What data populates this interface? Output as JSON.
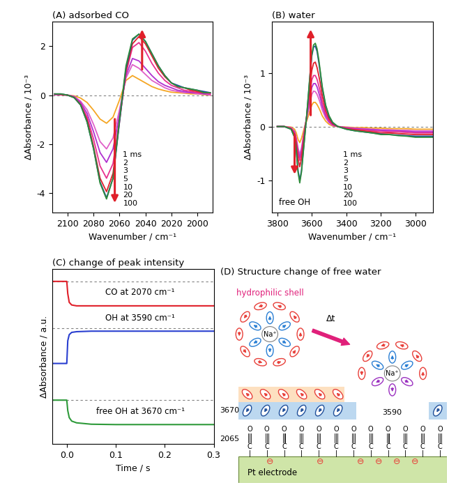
{
  "chart_data": [
    {
      "type": "line",
      "title": "(A) adsorbed CO",
      "x_label": "Wavenumber / cm⁻¹",
      "y_label": "ΔAbsorbance / 10⁻³",
      "x": [
        2110,
        2105,
        2100,
        2095,
        2090,
        2085,
        2080,
        2075,
        2070,
        2065,
        2060,
        2055,
        2050,
        2045,
        2040,
        2035,
        2030,
        2025,
        2020,
        2015,
        2010,
        2005,
        2000,
        1995,
        1990
      ],
      "xlim": [
        2112,
        1988
      ],
      "xticks": [
        2100,
        2080,
        2060,
        2040,
        2020,
        2000
      ],
      "ylim": [
        -4.8,
        3.0
      ],
      "yticks": [
        -4,
        -2,
        0,
        2
      ],
      "baseline": 0,
      "legend": "lower center",
      "series": [
        {
          "name": "1 ms",
          "color": "#f5a623",
          "values": [
            0.01,
            0.01,
            0.0,
            -0.03,
            -0.12,
            -0.3,
            -0.62,
            -0.98,
            -1.15,
            -0.9,
            -0.2,
            0.6,
            0.8,
            0.65,
            0.5,
            0.35,
            0.25,
            0.18,
            0.12,
            0.1,
            0.08,
            0.05,
            0.05,
            0.02,
            0.0
          ]
        },
        {
          "name": "2",
          "color": "#e060c8",
          "values": [
            0.02,
            0.01,
            0.0,
            -0.05,
            -0.25,
            -0.6,
            -1.2,
            -1.9,
            -2.2,
            -1.75,
            -0.6,
            0.7,
            1.25,
            1.1,
            0.85,
            0.6,
            0.45,
            0.3,
            0.2,
            0.15,
            0.1,
            0.1,
            0.05,
            0.05,
            0.0
          ]
        },
        {
          "name": "3",
          "color": "#b030d0",
          "values": [
            0.02,
            0.02,
            0.0,
            -0.06,
            -0.3,
            -0.75,
            -1.5,
            -2.35,
            -2.75,
            -2.2,
            -0.8,
            0.8,
            1.5,
            1.4,
            1.1,
            0.8,
            0.55,
            0.4,
            0.3,
            0.2,
            0.15,
            0.1,
            0.1,
            0.05,
            0.05
          ]
        },
        {
          "name": "5",
          "color": "#e8308f",
          "values": [
            0.03,
            0.02,
            0.0,
            -0.08,
            -0.35,
            -0.9,
            -1.8,
            -2.9,
            -3.4,
            -2.8,
            -1.0,
            0.9,
            1.95,
            2.15,
            1.8,
            1.3,
            0.9,
            0.6,
            0.4,
            0.3,
            0.2,
            0.15,
            0.1,
            0.1,
            0.05
          ]
        },
        {
          "name": "10",
          "color": "#e0202a",
          "values": [
            0.05,
            0.03,
            0.0,
            -0.1,
            -0.4,
            -1.0,
            -2.1,
            -3.4,
            -3.95,
            -3.2,
            -1.1,
            1.0,
            2.1,
            2.4,
            2.1,
            1.6,
            1.1,
            0.75,
            0.5,
            0.35,
            0.3,
            0.2,
            0.15,
            0.1,
            0.1
          ]
        },
        {
          "name": "20",
          "color": "#1f4e9a",
          "values": [
            0.05,
            0.05,
            0.0,
            -0.1,
            -0.4,
            -1.1,
            -2.2,
            -3.55,
            -4.2,
            -3.4,
            -1.1,
            1.1,
            2.25,
            2.5,
            2.2,
            1.7,
            1.2,
            0.8,
            0.5,
            0.4,
            0.3,
            0.25,
            0.2,
            0.15,
            0.1
          ]
        },
        {
          "name": "100",
          "color": "#2e8b3a",
          "values": [
            0.05,
            0.05,
            0.0,
            -0.1,
            -0.4,
            -1.1,
            -2.2,
            -3.6,
            -4.25,
            -3.4,
            -1.0,
            1.2,
            2.3,
            2.5,
            2.2,
            1.7,
            1.2,
            0.8,
            0.5,
            0.35,
            0.3,
            0.25,
            0.2,
            0.1,
            0.1
          ]
        }
      ]
    },
    {
      "type": "line",
      "title": "(B) water",
      "x_label": "Wavenumber / cm⁻¹",
      "y_label": "ΔAbsorbance / 10⁻³",
      "annotations": [
        "free OH"
      ],
      "x": [
        3800,
        3760,
        3720,
        3700,
        3690,
        3680,
        3670,
        3660,
        3650,
        3640,
        3630,
        3620,
        3610,
        3600,
        3590,
        3580,
        3570,
        3560,
        3550,
        3540,
        3520,
        3500,
        3480,
        3450,
        3400,
        3350,
        3300,
        3250,
        3200,
        3150,
        3100,
        3050,
        3000,
        2950,
        2900
      ],
      "xlim": [
        3830,
        2900
      ],
      "xticks": [
        3800,
        3600,
        3400,
        3200,
        3000
      ],
      "ylim": [
        -1.6,
        1.95
      ],
      "yticks": [
        -1,
        0,
        1
      ],
      "baseline": 0,
      "legend": "lower center",
      "series": [
        {
          "name": "1 ms",
          "color": "#f5a623",
          "values": [
            0,
            0,
            -0.01,
            -0.05,
            -0.12,
            -0.24,
            -0.3,
            -0.22,
            -0.1,
            0.02,
            0.1,
            0.2,
            0.31,
            0.4,
            0.45,
            0.45,
            0.41,
            0.35,
            0.28,
            0.2,
            0.1,
            0.04,
            0.01,
            0.0,
            -0.01,
            -0.02,
            -0.02,
            -0.03,
            -0.03,
            -0.04,
            -0.04,
            -0.04,
            -0.05,
            -0.05,
            -0.05
          ]
        },
        {
          "name": "2",
          "color": "#e060c8",
          "values": [
            0,
            0,
            -0.02,
            -0.09,
            -0.21,
            -0.4,
            -0.52,
            -0.4,
            -0.2,
            0.0,
            0.14,
            0.3,
            0.46,
            0.6,
            0.66,
            0.65,
            0.6,
            0.52,
            0.42,
            0.31,
            0.16,
            0.07,
            0.02,
            0.0,
            -0.02,
            -0.03,
            -0.04,
            -0.05,
            -0.06,
            -0.06,
            -0.07,
            -0.07,
            -0.08,
            -0.08,
            -0.08
          ]
        },
        {
          "name": "3",
          "color": "#b030d0",
          "values": [
            0,
            0,
            -0.03,
            -0.1,
            -0.24,
            -0.45,
            -0.58,
            -0.45,
            -0.24,
            -0.02,
            0.16,
            0.36,
            0.56,
            0.73,
            0.8,
            0.8,
            0.74,
            0.63,
            0.52,
            0.38,
            0.2,
            0.09,
            0.03,
            0.0,
            -0.02,
            -0.04,
            -0.05,
            -0.06,
            -0.07,
            -0.08,
            -0.08,
            -0.09,
            -0.1,
            -0.1,
            -0.1
          ]
        },
        {
          "name": "5",
          "color": "#e8308f",
          "values": [
            0,
            0,
            -0.03,
            -0.12,
            -0.27,
            -0.5,
            -0.63,
            -0.5,
            -0.27,
            -0.03,
            0.18,
            0.42,
            0.67,
            0.87,
            0.95,
            0.95,
            0.88,
            0.76,
            0.62,
            0.46,
            0.24,
            0.11,
            0.04,
            0.0,
            -0.03,
            -0.05,
            -0.06,
            -0.08,
            -0.09,
            -0.1,
            -0.1,
            -0.11,
            -0.12,
            -0.12,
            -0.12
          ]
        },
        {
          "name": "10",
          "color": "#e0202a",
          "values": [
            0,
            0,
            -0.04,
            -0.15,
            -0.33,
            -0.6,
            -0.75,
            -0.6,
            -0.33,
            -0.05,
            0.2,
            0.5,
            0.8,
            1.05,
            1.18,
            1.2,
            1.1,
            0.95,
            0.78,
            0.58,
            0.3,
            0.14,
            0.05,
            0.0,
            -0.04,
            -0.06,
            -0.08,
            -0.1,
            -0.12,
            -0.12,
            -0.13,
            -0.14,
            -0.15,
            -0.15,
            -0.15
          ]
        },
        {
          "name": "20",
          "color": "#1f4e9a",
          "values": [
            0,
            0,
            -0.05,
            -0.2,
            -0.45,
            -0.82,
            -1.0,
            -0.82,
            -0.48,
            -0.14,
            0.2,
            0.58,
            0.98,
            1.32,
            1.48,
            1.5,
            1.4,
            1.2,
            0.97,
            0.72,
            0.38,
            0.18,
            0.07,
            0.0,
            -0.05,
            -0.08,
            -0.1,
            -0.12,
            -0.14,
            -0.15,
            -0.16,
            -0.17,
            -0.18,
            -0.18,
            -0.18
          ]
        },
        {
          "name": "100",
          "color": "#2e8b3a",
          "values": [
            0,
            0,
            -0.05,
            -0.2,
            -0.45,
            -0.85,
            -1.05,
            -0.85,
            -0.5,
            -0.15,
            0.2,
            0.6,
            1.0,
            1.35,
            1.52,
            1.55,
            1.45,
            1.25,
            1.0,
            0.75,
            0.4,
            0.2,
            0.08,
            0.0,
            -0.05,
            -0.08,
            -0.1,
            -0.12,
            -0.15,
            -0.15,
            -0.17,
            -0.18,
            -0.2,
            -0.2,
            -0.2
          ]
        }
      ]
    },
    {
      "type": "line",
      "title": "(C) change of peak intensity",
      "x_label": "Time / s",
      "y_label": "ΔAbsorbance / a.u.",
      "tick_labels": "x",
      "x": [
        -0.03,
        -0.02,
        -0.01,
        -0.002,
        0.0,
        0.002,
        0.005,
        0.01,
        0.02,
        0.05,
        0.1,
        0.15,
        0.2,
        0.25,
        0.3
      ],
      "xlim": [
        -0.03,
        0.3
      ],
      "xticks": [
        0.0,
        0.1,
        0.2,
        0.3
      ],
      "ylim": [
        0,
        10
      ],
      "series": [
        {
          "name": "CO at 2070 cm⁻¹",
          "color": "#e0202a",
          "baseline": 9.3,
          "values": [
            9.3,
            9.3,
            9.3,
            9.3,
            9.3,
            8.6,
            8.1,
            7.95,
            7.9,
            7.9,
            7.9,
            7.9,
            7.9,
            7.9,
            7.9
          ]
        },
        {
          "name": "OH at 3590 cm⁻¹",
          "color": "#2a3fd0",
          "baseline": 6.6,
          "values": [
            4.6,
            4.6,
            4.6,
            4.6,
            4.6,
            5.9,
            6.25,
            6.38,
            6.42,
            6.45,
            6.45,
            6.45,
            6.45,
            6.45,
            6.45
          ]
        },
        {
          "name": "free OH at 3670 cm⁻¹",
          "color": "#2e9a3a",
          "baseline": 2.5,
          "values": [
            2.5,
            2.5,
            2.5,
            2.5,
            2.5,
            1.9,
            1.5,
            1.3,
            1.2,
            1.12,
            1.1,
            1.1,
            1.1,
            1.1,
            1.1
          ]
        }
      ]
    }
  ],
  "diagram": {
    "title": "(D) Structure change of free water",
    "shell_label": "hydrophilic shell",
    "ion_label": "Na⁺",
    "step_label": "Δt",
    "free_oh_band": "3670",
    "bonded_oh_band": "3590",
    "co_band": "2065",
    "adsorbate_atoms": [
      "O",
      "C"
    ],
    "electrode_label": "Pt electrode",
    "charge_symbol": "⊖",
    "charges_before": 2,
    "charges_after": 4
  }
}
